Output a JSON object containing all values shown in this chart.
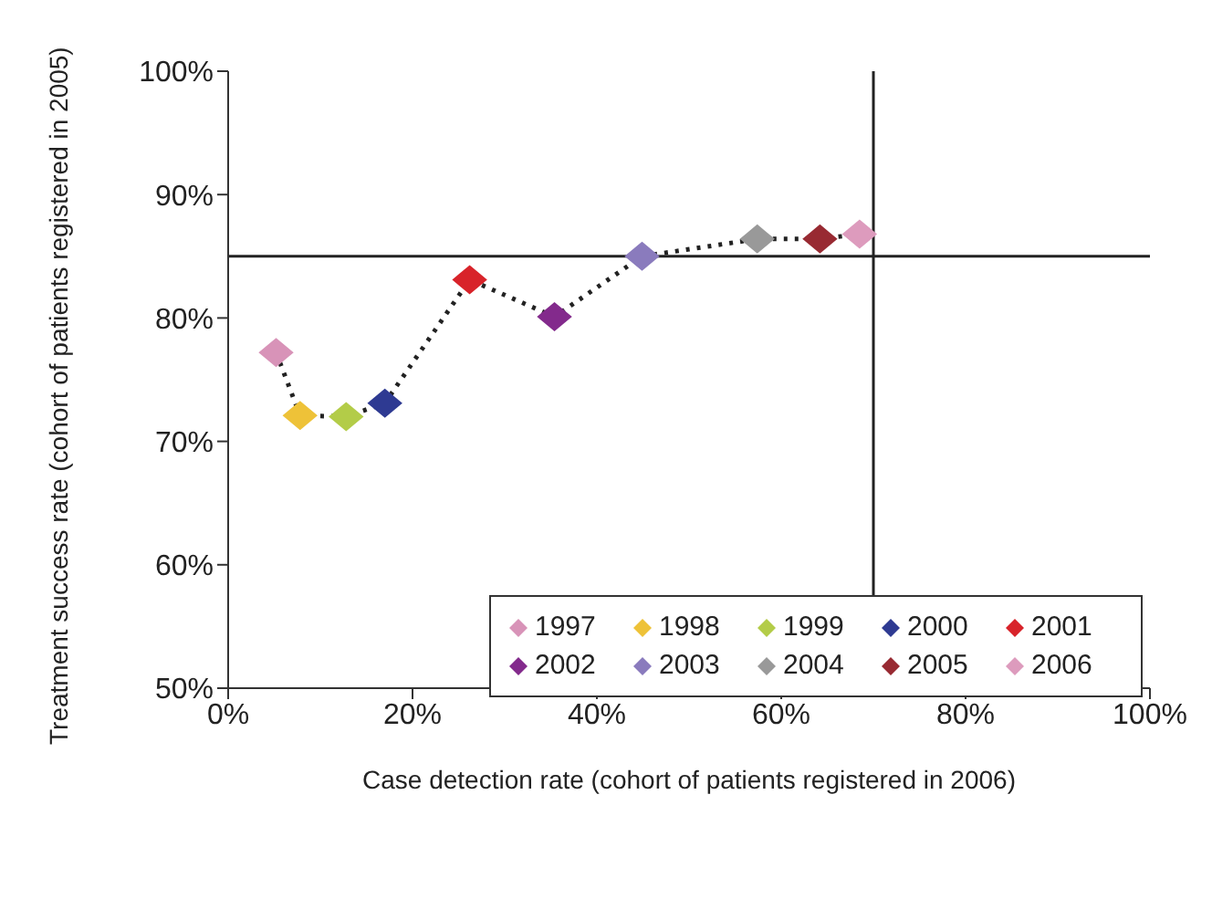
{
  "chart_data": {
    "type": "scatter",
    "xlabel": "Case detection rate (cohort of patients registered in 2006)",
    "ylabel": "Treatment success rate (cohort of patients registered in 2005)",
    "xlim": [
      0,
      100
    ],
    "ylim": [
      50,
      100
    ],
    "xticks": [
      {
        "value": 0,
        "label": "0%"
      },
      {
        "value": 20,
        "label": "20%"
      },
      {
        "value": 40,
        "label": "40%"
      },
      {
        "value": 60,
        "label": "60%"
      },
      {
        "value": 80,
        "label": "80%"
      },
      {
        "value": 100,
        "label": "100%"
      }
    ],
    "yticks": [
      {
        "value": 50,
        "label": "50%"
      },
      {
        "value": 60,
        "label": "60%"
      },
      {
        "value": 70,
        "label": "70%"
      },
      {
        "value": 80,
        "label": "80%"
      },
      {
        "value": 90,
        "label": "90%"
      },
      {
        "value": 100,
        "label": "100%"
      }
    ],
    "grid": false,
    "legend": "bottom right",
    "marker": "diamond",
    "ref_lines": [
      {
        "axis": "x",
        "value": 70,
        "color": "#222222"
      },
      {
        "axis": "y",
        "value": 85,
        "color": "#222222"
      }
    ],
    "series": [
      {
        "type": "line",
        "color": "#222222",
        "line_style": "dotted",
        "marker": "none",
        "x": [
          5.2,
          7.8,
          12.8,
          17,
          26.2,
          35.4,
          44.9,
          57.4,
          64.2,
          68.5
        ],
        "values": [
          77.2,
          72.1,
          72,
          73.1,
          83.1,
          80.1,
          85,
          86.4,
          86.4,
          86.8
        ]
      },
      {
        "name": "1997",
        "color": "#d893b8",
        "x": [
          5.2
        ],
        "values": [
          77.2
        ]
      },
      {
        "name": "1998",
        "color": "#eec238",
        "x": [
          7.8
        ],
        "values": [
          72.1
        ]
      },
      {
        "name": "1999",
        "color": "#b3cc48",
        "x": [
          12.8
        ],
        "values": [
          72
        ]
      },
      {
        "name": "2000",
        "color": "#2e3a92",
        "x": [
          17
        ],
        "values": [
          73.1
        ]
      },
      {
        "name": "2001",
        "color": "#d8232a",
        "x": [
          26.2
        ],
        "values": [
          83.1
        ]
      },
      {
        "name": "2002",
        "color": "#832a8c",
        "x": [
          35.4
        ],
        "values": [
          80.1
        ]
      },
      {
        "name": "2003",
        "color": "#8a7bbd",
        "x": [
          44.9
        ],
        "values": [
          85
        ]
      },
      {
        "name": "2004",
        "color": "#999999",
        "x": [
          57.4
        ],
        "values": [
          86.4
        ]
      },
      {
        "name": "2005",
        "color": "#982a32",
        "x": [
          64.2
        ],
        "values": [
          86.4
        ]
      },
      {
        "name": "2006",
        "color": "#dd9bbd",
        "x": [
          68.5
        ],
        "values": [
          86.8
        ]
      }
    ]
  }
}
